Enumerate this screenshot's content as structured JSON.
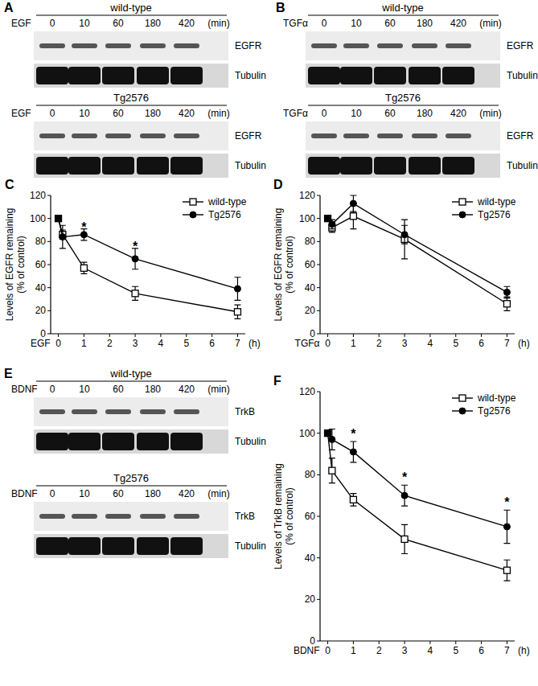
{
  "blots": [
    {
      "label": "A",
      "groups": [
        {
          "title": "wild-type",
          "treatment": "EGF",
          "times": [
            0,
            10,
            60,
            180,
            420
          ],
          "time_unit": "(min)",
          "rows": [
            "EGFR",
            "Tubulin"
          ]
        },
        {
          "title": "Tg2576",
          "treatment": "EGF",
          "times": [
            0,
            10,
            60,
            180,
            420
          ],
          "time_unit": "(min)",
          "rows": [
            "EGFR",
            "Tubulin"
          ]
        }
      ]
    },
    {
      "label": "B",
      "groups": [
        {
          "title": "wild-type",
          "treatment": "TGFα",
          "times": [
            0,
            10,
            60,
            180,
            420
          ],
          "time_unit": "(min)",
          "rows": [
            "EGFR",
            "Tubulin"
          ]
        },
        {
          "title": "Tg2576",
          "treatment": "TGFα",
          "times": [
            0,
            10,
            60,
            180,
            420
          ],
          "time_unit": "(min)",
          "rows": [
            "EGFR",
            "Tubulin"
          ]
        }
      ]
    },
    {
      "label": "E",
      "groups": [
        {
          "title": "wild-type",
          "treatment": "BDNF",
          "times": [
            0,
            10,
            60,
            180,
            420
          ],
          "time_unit": "(min)",
          "rows": [
            "TrkB",
            "Tubulin"
          ]
        },
        {
          "title": "Tg2576",
          "treatment": "BDNF",
          "times": [
            0,
            10,
            60,
            180,
            420
          ],
          "time_unit": "(min)",
          "rows": [
            "TrkB",
            "Tubulin"
          ]
        }
      ]
    }
  ],
  "chart_data": [
    {
      "label": "C",
      "type": "line",
      "ylabel": [
        "Levels of EGFR remaining",
        "(% of control)"
      ],
      "xlabel": "EGF",
      "x_unit": "(h)",
      "x": [
        0,
        0.167,
        1,
        3,
        7
      ],
      "xlim": [
        -0.3,
        7.3
      ],
      "xticks": [
        0,
        1,
        2,
        3,
        4,
        5,
        6,
        7
      ],
      "ylim": [
        0,
        120
      ],
      "yticks": [
        0,
        20,
        40,
        60,
        80,
        100,
        120
      ],
      "grid": false,
      "legend": "top-right",
      "series": [
        {
          "name": "wild-type",
          "color": "#000000",
          "marker": "square",
          "values": [
            100,
            86,
            57,
            35,
            19
          ],
          "errors": [
            0,
            4,
            5,
            6,
            6
          ]
        },
        {
          "name": "Tg2576",
          "color": "#000000",
          "marker": "circle",
          "values": [
            100,
            84,
            86,
            65,
            39
          ],
          "errors": [
            0,
            10,
            5,
            9,
            10
          ]
        }
      ],
      "annotations": [
        {
          "text": "*",
          "x": 1,
          "y": 93
        },
        {
          "text": "*",
          "x": 3,
          "y": 76
        }
      ]
    },
    {
      "label": "D",
      "type": "line",
      "ylabel": [
        "Levels of EGFR remaining",
        "(% of control)"
      ],
      "xlabel": "TGFα",
      "x_unit": "(h)",
      "x": [
        0,
        0.167,
        1,
        3,
        7
      ],
      "xlim": [
        -0.3,
        7.3
      ],
      "xticks": [
        0,
        1,
        2,
        3,
        4,
        5,
        6,
        7
      ],
      "ylim": [
        0,
        120
      ],
      "yticks": [
        0,
        20,
        40,
        60,
        80,
        100,
        120
      ],
      "grid": false,
      "legend": "top-right",
      "series": [
        {
          "name": "wild-type",
          "color": "#000000",
          "marker": "square",
          "values": [
            100,
            92,
            102,
            82,
            26
          ],
          "errors": [
            0,
            4,
            11,
            17,
            6
          ]
        },
        {
          "name": "Tg2576",
          "color": "#000000",
          "marker": "circle",
          "values": [
            100,
            95,
            113,
            86,
            36
          ],
          "errors": [
            0,
            4,
            7,
            8,
            5
          ]
        }
      ],
      "annotations": []
    },
    {
      "label": "F",
      "type": "line",
      "ylabel": [
        "Levels of TrkB remaining",
        "(% of control)"
      ],
      "xlabel": "BDNF",
      "x_unit": "(h)",
      "x": [
        0,
        0.167,
        1,
        3,
        7
      ],
      "xlim": [
        -0.3,
        7.3
      ],
      "xticks": [
        0,
        1,
        2,
        3,
        4,
        5,
        6,
        7
      ],
      "ylim": [
        0,
        120
      ],
      "yticks": [
        0,
        20,
        40,
        60,
        80,
        100,
        120
      ],
      "grid": false,
      "legend": "top-right",
      "series": [
        {
          "name": "wild-type",
          "color": "#000000",
          "marker": "square",
          "values": [
            100,
            82,
            68,
            49,
            34
          ],
          "errors": [
            0,
            6,
            3,
            7,
            5
          ]
        },
        {
          "name": "Tg2576",
          "color": "#000000",
          "marker": "circle",
          "values": [
            100,
            97,
            91,
            70,
            55
          ],
          "errors": [
            0,
            5,
            5,
            5,
            8
          ]
        }
      ],
      "annotations": [
        {
          "text": "*",
          "x": 1,
          "y": 100
        },
        {
          "text": "*",
          "x": 3,
          "y": 79
        },
        {
          "text": "*",
          "x": 7,
          "y": 67
        }
      ]
    }
  ]
}
